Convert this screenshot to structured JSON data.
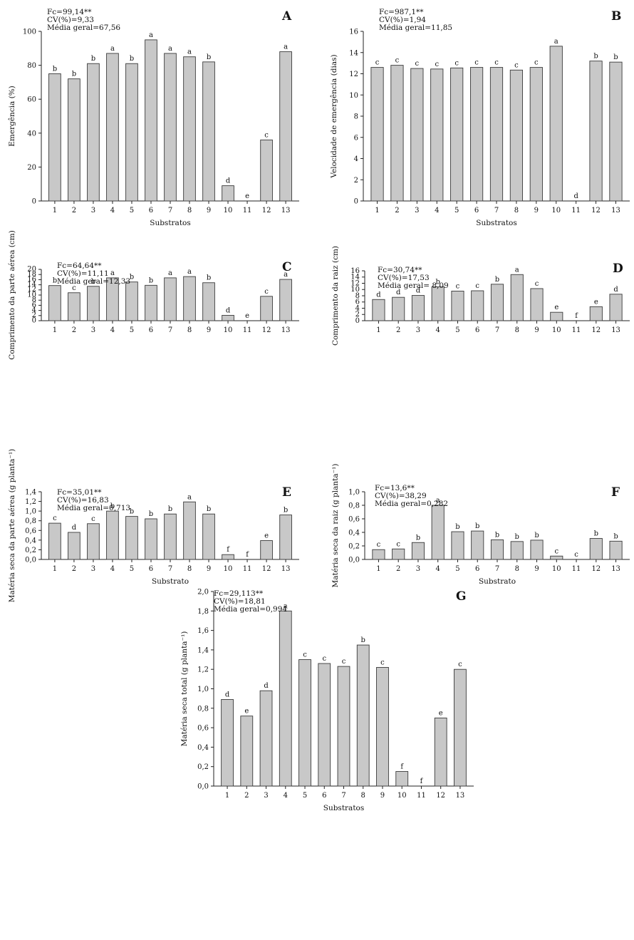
{
  "chart_data": [
    {
      "id": "A",
      "type": "bar",
      "panel_letter": "A",
      "stats": [
        "Fc=99,14**",
        "CV(%)=9,33",
        "Média geral=67,56"
      ],
      "xlabel": "Substratos",
      "ylabel": "Emergência (%)",
      "ylim": [
        0,
        100
      ],
      "yticks": [
        "0",
        "20",
        "40",
        "60",
        "80",
        "100"
      ],
      "ytick_values": [
        0,
        20,
        40,
        60,
        80,
        100
      ],
      "categories": [
        "1",
        "2",
        "3",
        "4",
        "5",
        "6",
        "7",
        "8",
        "9",
        "10",
        "11",
        "12",
        "13"
      ],
      "values": [
        75,
        72,
        81,
        87,
        81,
        95,
        87,
        85,
        82,
        9,
        0,
        36,
        88
      ],
      "letters": [
        "b",
        "b",
        "b",
        "a",
        "b",
        "a",
        "a",
        "a",
        "b",
        "d",
        "e",
        "c",
        "a"
      ]
    },
    {
      "id": "B",
      "type": "bar",
      "panel_letter": "B",
      "stats": [
        "Fc=987,1**",
        "CV(%)=1,94",
        "Média geral=11,85"
      ],
      "xlabel": "Substratos",
      "ylabel": "Velocidade de emergência (dias)",
      "ylim": [
        0,
        16
      ],
      "yticks": [
        "0",
        "2",
        "4",
        "6",
        "8",
        "10",
        "12",
        "14",
        "16"
      ],
      "ytick_values": [
        0,
        2,
        4,
        6,
        8,
        10,
        12,
        14,
        16
      ],
      "categories": [
        "1",
        "2",
        "3",
        "4",
        "5",
        "6",
        "7",
        "8",
        "9",
        "10",
        "11",
        "12",
        "13"
      ],
      "values": [
        12.6,
        12.8,
        12.5,
        12.45,
        12.55,
        12.6,
        12.6,
        12.35,
        12.6,
        14.6,
        0,
        13.2,
        13.1
      ],
      "letters": [
        "c",
        "c",
        "c",
        "c",
        "c",
        "c",
        "c",
        "c",
        "c",
        "a",
        "d",
        "b",
        "b"
      ]
    },
    {
      "id": "C",
      "type": "bar",
      "panel_letter": "C",
      "stats": [
        "Fc=64,64**",
        "CV(%)=11,11",
        "Média geral=12,33"
      ],
      "xlabel": "",
      "ylabel": "Comprimento da parte aérea (cm)",
      "ylim": [
        0,
        20
      ],
      "yticks": [
        "0",
        "2",
        "4",
        "6",
        "8",
        "10",
        "12",
        "14",
        "16",
        "18",
        "20"
      ],
      "ytick_values": [
        0,
        2,
        4,
        6,
        8,
        10,
        12,
        14,
        16,
        18,
        20
      ],
      "categories": [
        "1",
        "2",
        "3",
        "4",
        "5",
        "6",
        "7",
        "8",
        "9",
        "10",
        "11",
        "12",
        "13"
      ],
      "values": [
        13.7,
        10.9,
        13.4,
        16.7,
        15.1,
        13.8,
        16.7,
        17.2,
        14.8,
        2.1,
        0,
        9.5,
        16.1
      ],
      "letters": [
        "b",
        "c",
        "b",
        "a",
        "b",
        "b",
        "a",
        "a",
        "b",
        "d",
        "e",
        "c",
        "a"
      ]
    },
    {
      "id": "D",
      "type": "bar",
      "panel_letter": "D",
      "stats": [
        "Fc=30,74**",
        "CV(%)=17,53",
        "Média geral= 8,09"
      ],
      "xlabel": "",
      "ylabel": "Comprimento da raiz (cm)",
      "ylim": [
        0,
        16
      ],
      "yticks": [
        "0",
        "2",
        "4",
        "6",
        "8",
        "10",
        "12",
        "14",
        "16"
      ],
      "ytick_values": [
        0,
        2,
        4,
        6,
        8,
        10,
        12,
        14,
        16
      ],
      "categories": [
        "1",
        "2",
        "3",
        "4",
        "5",
        "6",
        "7",
        "8",
        "9",
        "10",
        "11",
        "12",
        "13"
      ],
      "values": [
        6.8,
        7.5,
        8.1,
        10.9,
        9.5,
        9.6,
        11.7,
        14.8,
        10.3,
        2.7,
        0,
        4.5,
        8.5
      ],
      "letters": [
        "d",
        "d",
        "d",
        "b",
        "c",
        "c",
        "b",
        "a",
        "c",
        "e",
        "f",
        "e",
        "d"
      ]
    },
    {
      "id": "E",
      "type": "bar",
      "panel_letter": "E",
      "stats": [
        "Fc=35,01**",
        "CV(%)=16,83",
        "Média geral=0,713"
      ],
      "xlabel": "Substrato",
      "ylabel": "Matéria seca da parte aérea (g planta⁻¹)",
      "ylim": [
        0,
        1.4
      ],
      "yticks": [
        "0,0",
        "0,2",
        "0,4",
        "0,6",
        "0,8",
        "1,0",
        "1,2",
        "1,4"
      ],
      "ytick_values": [
        0,
        0.2,
        0.4,
        0.6,
        0.8,
        1.0,
        1.2,
        1.4
      ],
      "categories": [
        "1",
        "2",
        "3",
        "4",
        "5",
        "6",
        "7",
        "8",
        "9",
        "10",
        "11",
        "12",
        "13"
      ],
      "values": [
        0.75,
        0.56,
        0.74,
        1.0,
        0.89,
        0.84,
        0.94,
        1.19,
        0.94,
        0.1,
        0,
        0.39,
        0.92
      ],
      "letters": [
        "c",
        "d",
        "c",
        "b",
        "b",
        "b",
        "b",
        "a",
        "b",
        "f",
        "f",
        "e",
        "b"
      ]
    },
    {
      "id": "F",
      "type": "bar",
      "panel_letter": "F",
      "stats": [
        "Fc=13,6**",
        "CV(%)=38,29",
        "Média geral=0,282"
      ],
      "xlabel": "Substrato",
      "ylabel": "Matéria seca da raiz (g planta⁻¹)",
      "ylim": [
        0,
        1.0
      ],
      "yticks": [
        "0,0",
        "0,2",
        "0,4",
        "0,6",
        "0,8",
        "1,0"
      ],
      "ytick_values": [
        0,
        0.2,
        0.4,
        0.6,
        0.8,
        1.0
      ],
      "categories": [
        "1",
        "2",
        "3",
        "4",
        "5",
        "6",
        "7",
        "8",
        "9",
        "10",
        "11",
        "12",
        "13"
      ],
      "values": [
        0.145,
        0.155,
        0.25,
        0.8,
        0.41,
        0.42,
        0.29,
        0.265,
        0.285,
        0.05,
        0,
        0.31,
        0.27
      ],
      "letters": [
        "c",
        "c",
        "b",
        "a",
        "b",
        "b",
        "b",
        "b",
        "b",
        "c",
        "c",
        "b",
        "b"
      ]
    },
    {
      "id": "G",
      "type": "bar",
      "panel_letter": "G",
      "stats": [
        "Fc=29,113**",
        "CV(%)=18,81",
        "Média geral=0,994"
      ],
      "xlabel": "Substratos",
      "ylabel": "Matéria seca total (g planta⁻¹)",
      "ylim": [
        0,
        2.0
      ],
      "yticks": [
        "0,0",
        "0,2",
        "0,4",
        "0,6",
        "0,8",
        "1,0",
        "1,2",
        "1,4",
        "1,6",
        "1,8",
        "2,0"
      ],
      "ytick_values": [
        0,
        0.2,
        0.4,
        0.6,
        0.8,
        1.0,
        1.2,
        1.4,
        1.6,
        1.8,
        2.0
      ],
      "categories": [
        "1",
        "2",
        "3",
        "4",
        "5",
        "6",
        "7",
        "8",
        "9",
        "10",
        "11",
        "12",
        "13"
      ],
      "values": [
        0.89,
        0.72,
        0.98,
        1.8,
        1.3,
        1.26,
        1.23,
        1.45,
        1.22,
        0.15,
        0,
        0.7,
        1.2
      ],
      "letters": [
        "d",
        "e",
        "d",
        "a",
        "c",
        "c",
        "c",
        "b",
        "c",
        "f",
        "f",
        "e",
        "c"
      ]
    }
  ]
}
